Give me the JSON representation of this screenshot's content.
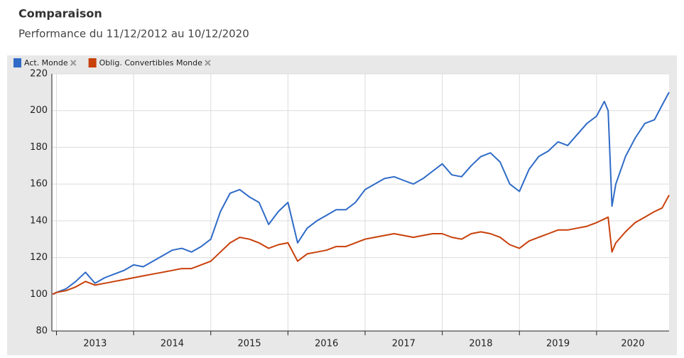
{
  "header": {
    "title": "Comparaison",
    "subtitle": "Performance du 11/12/2012 au 10/12/2020"
  },
  "chart_data": {
    "type": "line",
    "x": [
      2012.95,
      2013.0,
      2013.125,
      2013.25,
      2013.375,
      2013.5,
      2013.625,
      2013.75,
      2013.875,
      2014.0,
      2014.125,
      2014.25,
      2014.375,
      2014.5,
      2014.625,
      2014.75,
      2014.875,
      2015.0,
      2015.125,
      2015.25,
      2015.375,
      2015.5,
      2015.625,
      2015.75,
      2015.875,
      2016.0,
      2016.125,
      2016.25,
      2016.375,
      2016.5,
      2016.625,
      2016.75,
      2016.875,
      2017.0,
      2017.125,
      2017.25,
      2017.375,
      2017.5,
      2017.625,
      2017.75,
      2017.875,
      2018.0,
      2018.125,
      2018.25,
      2018.375,
      2018.5,
      2018.625,
      2018.75,
      2018.875,
      2019.0,
      2019.125,
      2019.25,
      2019.375,
      2019.5,
      2019.625,
      2019.75,
      2019.875,
      2020.0,
      2020.1,
      2020.15,
      2020.2,
      2020.25,
      2020.375,
      2020.5,
      2020.625,
      2020.75,
      2020.85,
      2020.94
    ],
    "series": [
      {
        "name": "Act. Monde",
        "color": "#2f6bc7",
        "values": [
          100,
          101,
          103,
          107,
          112,
          106,
          109,
          111,
          113,
          116,
          115,
          118,
          121,
          124,
          125,
          123,
          126,
          130,
          145,
          155,
          157,
          153,
          150,
          138,
          145,
          150,
          128,
          136,
          140,
          143,
          146,
          146,
          150,
          157,
          160,
          163,
          164,
          162,
          160,
          163,
          167,
          171,
          165,
          164,
          170,
          175,
          177,
          172,
          160,
          156,
          168,
          175,
          178,
          183,
          181,
          187,
          193,
          197,
          205,
          200,
          148,
          160,
          175,
          185,
          193,
          195,
          203,
          210
        ]
      },
      {
        "name": "Oblig. Convertibles Monde",
        "color": "#c8400a",
        "values": [
          100,
          101,
          102,
          104,
          107,
          105,
          106,
          107,
          108,
          109,
          110,
          111,
          112,
          113,
          114,
          114,
          116,
          118,
          123,
          128,
          131,
          130,
          128,
          125,
          127,
          128,
          118,
          122,
          123,
          124,
          126,
          126,
          128,
          130,
          131,
          132,
          133,
          132,
          131,
          132,
          133,
          133,
          131,
          130,
          133,
          134,
          133,
          131,
          127,
          125,
          129,
          131,
          133,
          135,
          135,
          136,
          137,
          139,
          141,
          142,
          123,
          128,
          134,
          139,
          142,
          145,
          147,
          154
        ]
      }
    ],
    "xlim": [
      2012.94,
      2020.94
    ],
    "xticks": [
      2013,
      2014,
      2015,
      2016,
      2017,
      2018,
      2019,
      2020
    ],
    "ylim": [
      80,
      220
    ],
    "yticks": [
      80,
      100,
      120,
      140,
      160,
      180,
      200,
      220
    ],
    "grid": true
  }
}
